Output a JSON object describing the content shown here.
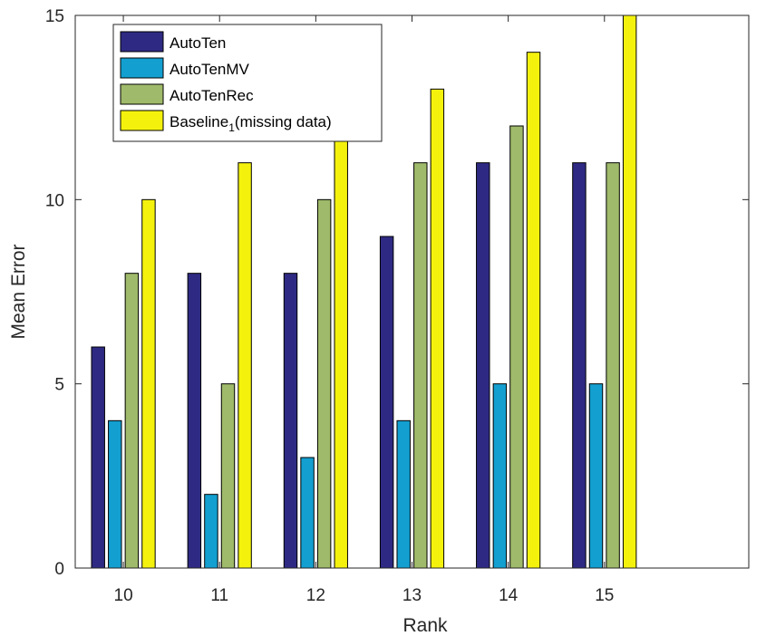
{
  "chart_data": {
    "type": "bar",
    "title": "",
    "xlabel": "Rank",
    "ylabel": "Mean Error",
    "categories": [
      "10",
      "11",
      "12",
      "13",
      "14",
      "15"
    ],
    "ylim": [
      0,
      15
    ],
    "yticks": [
      "0",
      "5",
      "10",
      "15"
    ],
    "series": [
      {
        "name": "AutoTen",
        "color": "#2e2a83",
        "values": [
          6,
          8,
          8,
          9,
          11,
          11
        ]
      },
      {
        "name": "AutoTenMV",
        "color": "#139fd0",
        "values": [
          4,
          2,
          3,
          4,
          5,
          5
        ]
      },
      {
        "name": "AutoTenRec",
        "color": "#9fba6a",
        "values": [
          8,
          5,
          10,
          11,
          12,
          11
        ]
      },
      {
        "name": "Baseline",
        "name_subscript": "1",
        "name_suffix": "(missing data)",
        "color": "#f4f20d",
        "values": [
          10,
          11,
          12,
          13,
          14,
          15
        ]
      }
    ],
    "legend": "top-left",
    "grid": false
  }
}
